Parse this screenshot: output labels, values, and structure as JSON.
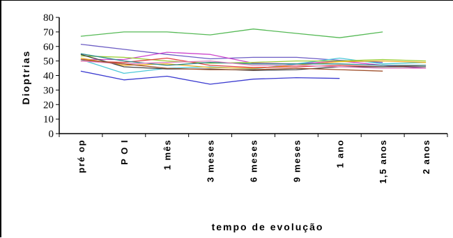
{
  "chart_data": {
    "type": "line",
    "title": "",
    "xlabel": "tempo de evolução",
    "ylabel": "Dioptrias",
    "ylim": [
      0,
      80
    ],
    "yticks": [
      "0",
      "10",
      "20",
      "30",
      "40",
      "50",
      "60",
      "70",
      "80"
    ],
    "categories": [
      "pré op",
      "P O I",
      "1 mês",
      "3 meses",
      "6 meses",
      "9 meses",
      "1 ano",
      "1,5 anos",
      "2 anos"
    ],
    "grid": false,
    "legend": "none",
    "series": [
      {
        "color": "#55b955",
        "values": [
          67,
          70,
          70,
          68,
          72,
          69,
          66,
          70,
          null
        ]
      },
      {
        "color": "#6c5cc4",
        "values": [
          61.5,
          58,
          54.5,
          51.5,
          52.5,
          52.5,
          50.5,
          49,
          null
        ]
      },
      {
        "color": "#cc44cc",
        "values": [
          51,
          51,
          56,
          54.5,
          48.5,
          48,
          50,
          47,
          45
        ]
      },
      {
        "color": "#4cc8d8",
        "values": [
          51,
          41.5,
          45,
          46,
          44.5,
          48,
          52,
          48,
          49
        ]
      },
      {
        "color": "#9acd32",
        "values": [
          53.5,
          52.5,
          50,
          48.5,
          49,
          50,
          50,
          51,
          50
        ]
      },
      {
        "color": "#f0b020",
        "values": [
          52,
          47,
          48,
          45.5,
          45,
          47,
          49.5,
          50,
          49
        ]
      },
      {
        "color": "#e04040",
        "values": [
          50,
          49,
          52,
          47,
          45.5,
          46,
          47,
          46,
          47
        ]
      },
      {
        "color": "#404040",
        "values": [
          54.5,
          46,
          44.5,
          44.5,
          43.5,
          44,
          46,
          46,
          46
        ]
      },
      {
        "color": "#3a3ad0",
        "values": [
          43,
          37,
          39.5,
          34,
          37.5,
          38.5,
          38,
          null,
          null
        ]
      },
      {
        "color": "#2a8a8a",
        "values": [
          55,
          50,
          47,
          49,
          48,
          48,
          48,
          47,
          47
        ]
      },
      {
        "color": "#e080c0",
        "values": [
          50,
          48,
          49,
          50,
          47,
          47,
          46,
          45,
          45
        ]
      },
      {
        "color": "#a0522d",
        "values": [
          51,
          48,
          45,
          44,
          44,
          45,
          44,
          43,
          null
        ]
      }
    ]
  }
}
